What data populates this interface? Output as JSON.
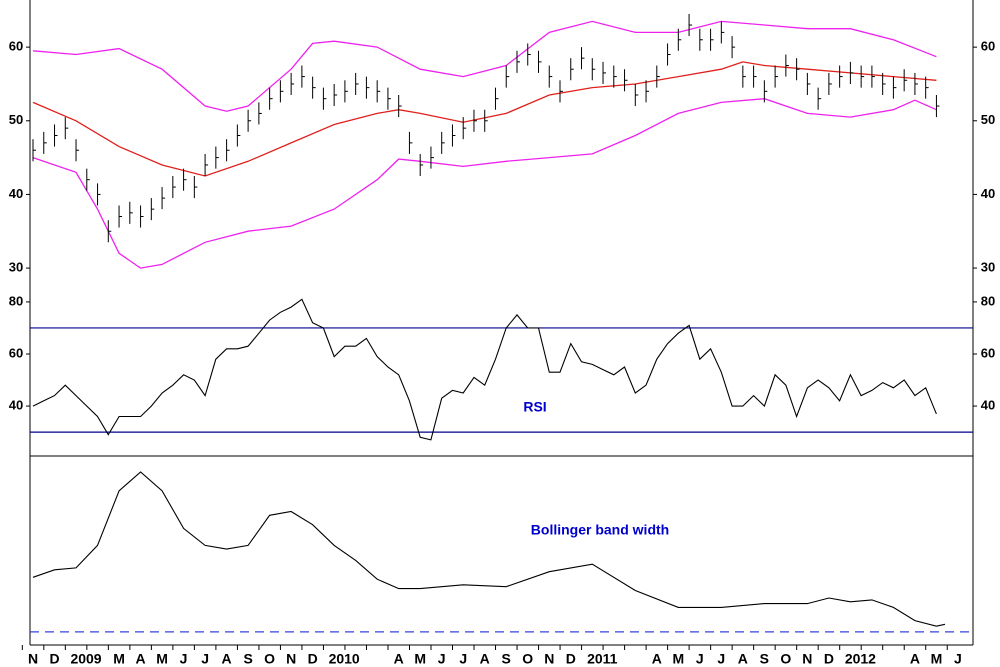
{
  "chart_data": [
    {
      "type": "ohlc",
      "bar_color": "#000000",
      "x": [
        0,
        0.5,
        1,
        1.5,
        2,
        2.5,
        3,
        3.5,
        4,
        4.5,
        5,
        5.5,
        6,
        6.5,
        7,
        7.5,
        8,
        8.5,
        9,
        9.5,
        10,
        10.5,
        11,
        11.5,
        12,
        12.5,
        13,
        13.5,
        14,
        14.5,
        15,
        15.5,
        16,
        16.5,
        17,
        17.5,
        18,
        18.5,
        19,
        19.5,
        20,
        20.5,
        21,
        21.5,
        22,
        22.5,
        23,
        23.5,
        24,
        24.5,
        25,
        25.5,
        26,
        26.5,
        27,
        27.5,
        28,
        28.5,
        29,
        29.5,
        30,
        30.5,
        31,
        31.5,
        32,
        32.5,
        33,
        33.5,
        34,
        34.5,
        35,
        35.5,
        36,
        36.5,
        37,
        37.5,
        38,
        38.5,
        39,
        39.5,
        40,
        40.5,
        41,
        41.5,
        42
      ],
      "high": [
        47.5,
        48.5,
        49.5,
        50.5,
        47.5,
        43.5,
        41.5,
        36.5,
        38.5,
        39,
        38.5,
        39.5,
        41,
        42.5,
        43.5,
        42.5,
        45.5,
        46.5,
        47.5,
        49.5,
        51.5,
        52.5,
        54.5,
        55.5,
        56.5,
        57.5,
        56,
        54.5,
        55,
        55.5,
        56.5,
        56,
        55.5,
        54.5,
        53.5,
        48.5,
        45.5,
        46.5,
        48.5,
        49.5,
        50.5,
        51.5,
        51.5,
        54.5,
        57.5,
        59.5,
        60.5,
        59.5,
        57.5,
        55.5,
        58.5,
        60,
        58.5,
        58,
        57.5,
        57,
        55,
        55.5,
        57.5,
        60.5,
        62.5,
        64.5,
        62.5,
        62.5,
        63.5,
        61.5,
        57.5,
        57.5,
        55.5,
        57.5,
        59,
        58.5,
        56.5,
        54.5,
        56.5,
        57.5,
        58,
        57.5,
        57.5,
        56.5,
        56,
        57,
        56.5,
        56,
        53.5
      ],
      "low": [
        44.5,
        45.5,
        46.5,
        47.5,
        44.5,
        40.5,
        38.5,
        33.5,
        35.5,
        36,
        35.5,
        36.5,
        38,
        39.5,
        40.5,
        39.5,
        42.5,
        43.5,
        44.5,
        46.5,
        48.5,
        49.5,
        51.5,
        52.5,
        53.5,
        54.5,
        53,
        51.5,
        52,
        52.5,
        53.5,
        53,
        52.5,
        51.5,
        50.5,
        45.5,
        42.5,
        43.5,
        45.5,
        46.5,
        47.5,
        48.5,
        48.5,
        51.5,
        54.5,
        56.5,
        57.5,
        56.5,
        54.5,
        52.5,
        55.5,
        57,
        55.5,
        55,
        54.5,
        54,
        52,
        52.5,
        54.5,
        57.5,
        59.5,
        61.5,
        59.5,
        59.5,
        60.5,
        58.5,
        54.5,
        54.5,
        52.5,
        54.5,
        56,
        55.5,
        53.5,
        51.5,
        53.5,
        54.5,
        55,
        54.5,
        54.5,
        53.5,
        53,
        54,
        53.5,
        53,
        50.5
      ],
      "close": [
        46,
        47,
        48,
        49,
        46,
        42,
        40,
        35,
        37,
        37.5,
        37,
        38,
        39.5,
        41,
        42,
        41,
        44,
        45,
        46,
        48,
        50,
        51,
        53,
        54,
        55,
        56,
        54.5,
        53,
        53.5,
        54,
        55,
        54.5,
        54,
        53,
        52,
        47,
        44,
        45,
        47,
        48,
        49,
        50,
        50,
        53,
        56,
        58,
        59,
        58,
        56,
        54,
        57,
        58.5,
        57,
        56.5,
        56,
        55.5,
        53.5,
        54,
        56,
        59,
        61,
        63,
        61,
        61,
        62,
        60,
        56,
        56,
        54,
        56,
        57.5,
        57,
        55,
        53,
        55,
        56,
        56.5,
        56,
        56,
        55,
        54.5,
        55.5,
        55,
        54.5,
        52
      ],
      "lines": [
        {
          "color": "#e0201c",
          "x": [
            0,
            2,
            4,
            6,
            8,
            10,
            12,
            14,
            16,
            17,
            18,
            20,
            22,
            24,
            26,
            28,
            30,
            32,
            33,
            34,
            36,
            38,
            40,
            42
          ],
          "values": [
            52.5,
            50,
            46.5,
            44,
            42.5,
            44.5,
            47,
            49.5,
            51,
            51.5,
            51,
            49.8,
            51,
            53.5,
            54.5,
            55,
            56,
            57,
            58,
            57.5,
            57,
            56.5,
            56,
            55.5
          ]
        },
        {
          "color": "#ee22ee",
          "x": [
            0,
            2,
            4,
            6,
            8,
            9,
            10,
            12,
            13,
            14,
            16,
            18,
            20,
            22,
            24,
            26,
            28,
            30,
            32,
            34,
            36,
            38,
            40,
            42
          ],
          "values": [
            59.5,
            59,
            59.8,
            57,
            52,
            51.3,
            52,
            57,
            60.5,
            60.8,
            60,
            57,
            56,
            57.5,
            62,
            63.5,
            62,
            62,
            63.5,
            63,
            62.5,
            62.5,
            61,
            58.7
          ]
        },
        {
          "color": "#ee22ee",
          "x": [
            0,
            2,
            3,
            4,
            5,
            6,
            8,
            10,
            12,
            14,
            16,
            17,
            18,
            20,
            22,
            24,
            26,
            28,
            30,
            32,
            34,
            36,
            38,
            40,
            41,
            42
          ],
          "values": [
            45,
            43,
            38,
            32,
            30,
            30.5,
            33.5,
            35,
            35.7,
            38,
            42,
            44.8,
            44.5,
            43.8,
            44.5,
            45,
            45.5,
            48,
            51,
            52.5,
            53,
            51,
            50.5,
            51.5,
            52.8,
            51.5
          ]
        }
      ],
      "ylim": [
        27.7,
        66.4
      ],
      "yticks": [
        30,
        40,
        50,
        60
      ]
    },
    {
      "type": "line",
      "label": "RSI",
      "color": "#000000",
      "ref_color": "#00008b",
      "x": [
        0,
        0.5,
        1,
        1.5,
        2,
        2.5,
        3,
        3.5,
        4,
        4.5,
        5,
        5.5,
        6,
        6.5,
        7,
        7.5,
        8,
        8.5,
        9,
        9.5,
        10,
        10.5,
        11,
        11.5,
        12,
        12.5,
        13,
        13.5,
        14,
        14.5,
        15,
        15.5,
        16,
        16.5,
        17,
        17.5,
        18,
        18.5,
        19,
        19.5,
        20,
        20.5,
        21,
        21.5,
        22,
        22.5,
        23,
        23.5,
        24,
        24.5,
        25,
        25.5,
        26,
        26.5,
        27,
        27.5,
        28,
        28.5,
        29,
        29.5,
        30,
        30.5,
        31,
        31.5,
        32,
        32.5,
        33,
        33.5,
        34,
        34.5,
        35,
        35.5,
        36,
        36.5,
        37,
        37.5,
        38,
        38.5,
        39,
        39.5,
        40,
        40.5,
        41,
        41.5,
        42
      ],
      "values": [
        40,
        42,
        44,
        48,
        44,
        40,
        36,
        29,
        36,
        36,
        36,
        40,
        45,
        48,
        52,
        50,
        44,
        58,
        62,
        62,
        63,
        68,
        73,
        76,
        78,
        81,
        72,
        70,
        59,
        63,
        63,
        66,
        59,
        55,
        52,
        42,
        28,
        27,
        43,
        46,
        45,
        51,
        48,
        58,
        70,
        75,
        70,
        70,
        53,
        53,
        64,
        57,
        56,
        54,
        52,
        55,
        45,
        48,
        58,
        64,
        68,
        71,
        58,
        62,
        53,
        40,
        40,
        44,
        40,
        52,
        48,
        36,
        47,
        50,
        47,
        42,
        52,
        44,
        46,
        49,
        47,
        50,
        44,
        47,
        37
      ],
      "hlines": [
        30,
        70
      ],
      "ylim": [
        21.2,
        86.5
      ],
      "yticks": [
        40,
        60,
        80
      ]
    },
    {
      "type": "line",
      "label": "Bollinger band width",
      "color": "#000000",
      "ref_color": "#3344dd",
      "ref_dashed": true,
      "x": [
        0,
        1,
        2,
        3,
        4,
        5,
        6,
        7,
        8,
        9,
        10,
        11,
        12,
        13,
        14,
        15,
        16,
        17,
        18,
        20,
        22,
        24,
        26,
        28,
        30,
        32,
        34,
        36,
        37,
        38,
        39,
        40,
        41,
        42,
        42.4
      ],
      "values": [
        36,
        40,
        41,
        53,
        82,
        92,
        82,
        62,
        53,
        51,
        53,
        69,
        71,
        64,
        53,
        45,
        35,
        30,
        30,
        32,
        31,
        39,
        43,
        29,
        20,
        20,
        22,
        22,
        25,
        23,
        24,
        20,
        13,
        10,
        11
      ],
      "hlines": [
        7
      ],
      "ylim": [
        0,
        100
      ],
      "categories": [
        "N",
        "D",
        "2009",
        null,
        "M",
        "A",
        "M",
        "J",
        "J",
        "A",
        "S",
        "O",
        "N",
        "D",
        "2010",
        null,
        null,
        "A",
        "M",
        "J",
        "J",
        "A",
        "S",
        "O",
        "N",
        "D",
        "2011",
        null,
        null,
        "A",
        "M",
        "J",
        "J",
        "A",
        "S",
        "O",
        "N",
        "D",
        "2012",
        null,
        null,
        "A",
        "M",
        "J"
      ],
      "xlim": [
        -0.14,
        43.7
      ]
    }
  ]
}
